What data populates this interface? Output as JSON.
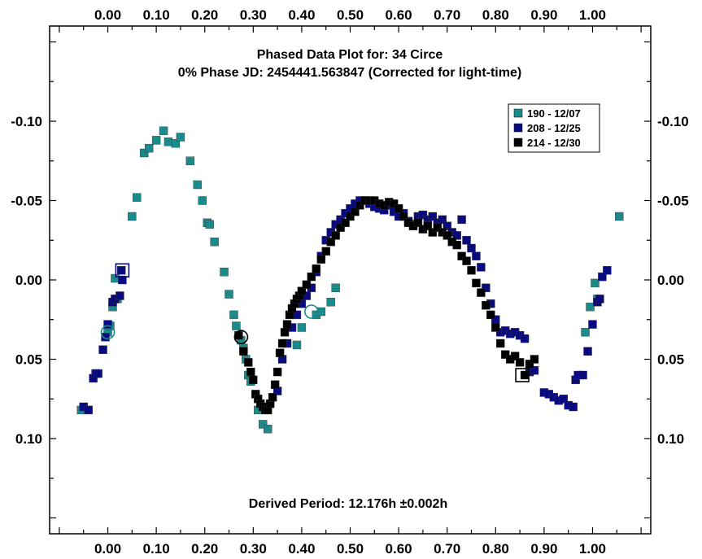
{
  "chart_data": {
    "type": "scatter",
    "title": "Phased Data Plot for: 34 Circe",
    "subtitle": "0% Phase JD:  2454441.563847    (Corrected for light-time)",
    "annotation": "Derived Period: 12.176h   ±0.002h",
    "xlim": [
      -0.12,
      1.12
    ],
    "ylim": [
      -0.16,
      0.16
    ],
    "y_inverted": true,
    "x_ticks": [
      "0.00",
      "0.10",
      "0.20",
      "0.30",
      "0.40",
      "0.50",
      "0.60",
      "0.70",
      "0.80",
      "0.90",
      "1.00"
    ],
    "y_ticks": [
      "-0.10",
      "-0.05",
      "0.00",
      "0.05",
      "0.10"
    ],
    "legend_position": "top-right",
    "series": [
      {
        "name": "190 - 12/07",
        "color": "#1a8a8a",
        "marker": "square",
        "points": [
          [
            -0.055,
            0.082
          ],
          [
            0.0,
            0.033
          ],
          [
            0.005,
            0.029
          ],
          [
            0.01,
            0.017
          ],
          [
            0.015,
            -0.001
          ],
          [
            0.02,
            0.012
          ],
          [
            0.05,
            -0.04
          ],
          [
            0.06,
            -0.052
          ],
          [
            0.075,
            -0.08
          ],
          [
            0.085,
            -0.083
          ],
          [
            0.1,
            -0.088
          ],
          [
            0.115,
            -0.094
          ],
          [
            0.125,
            -0.087
          ],
          [
            0.14,
            -0.086
          ],
          [
            0.15,
            -0.09
          ],
          [
            0.17,
            -0.075
          ],
          [
            0.185,
            -0.06
          ],
          [
            0.195,
            -0.05
          ],
          [
            0.205,
            -0.036
          ],
          [
            0.21,
            -0.035
          ],
          [
            0.22,
            -0.024
          ],
          [
            0.24,
            -0.005
          ],
          [
            0.25,
            0.009
          ],
          [
            0.26,
            0.022
          ],
          [
            0.265,
            0.029
          ],
          [
            0.275,
            0.038
          ],
          [
            0.28,
            0.043
          ],
          [
            0.285,
            0.05
          ],
          [
            0.29,
            0.06
          ],
          [
            0.295,
            0.064
          ],
          [
            0.31,
            0.082
          ],
          [
            0.32,
            0.091
          ],
          [
            0.33,
            0.094
          ],
          [
            0.39,
            0.041
          ],
          [
            0.4,
            0.03
          ],
          [
            0.43,
            0.022
          ],
          [
            0.44,
            0.02
          ],
          [
            0.46,
            0.014
          ],
          [
            0.47,
            0.005
          ],
          [
            0.985,
            0.033
          ],
          [
            0.995,
            0.017
          ],
          [
            1.005,
            0.002
          ],
          [
            1.01,
            0.012
          ],
          [
            1.055,
            -0.04
          ]
        ],
        "circled": [
          [
            0.0,
            0.033
          ],
          [
            0.42,
            0.02
          ]
        ]
      },
      {
        "name": "208 - 12/25",
        "color": "#0a0a80",
        "marker": "square",
        "points": [
          [
            -0.05,
            0.08
          ],
          [
            -0.04,
            0.082
          ],
          [
            -0.03,
            0.062
          ],
          [
            -0.025,
            0.059
          ],
          [
            -0.02,
            0.059
          ],
          [
            -0.01,
            0.044
          ],
          [
            -0.005,
            0.036
          ],
          [
            0.0,
            0.028
          ],
          [
            0.01,
            0.014
          ],
          [
            0.015,
            0.012
          ],
          [
            0.025,
            0.01
          ],
          [
            0.028,
            -0.006
          ],
          [
            0.03,
            0.0
          ],
          [
            0.32,
            0.08
          ],
          [
            0.35,
            0.07
          ],
          [
            0.36,
            0.05
          ],
          [
            0.37,
            0.04
          ],
          [
            0.38,
            0.03
          ],
          [
            0.39,
            0.022
          ],
          [
            0.4,
            0.015
          ],
          [
            0.41,
            0.01
          ],
          [
            0.42,
            0.005
          ],
          [
            0.43,
            -0.005
          ],
          [
            0.44,
            -0.015
          ],
          [
            0.45,
            -0.025
          ],
          [
            0.46,
            -0.03
          ],
          [
            0.47,
            -0.035
          ],
          [
            0.48,
            -0.038
          ],
          [
            0.49,
            -0.042
          ],
          [
            0.5,
            -0.045
          ],
          [
            0.51,
            -0.048
          ],
          [
            0.52,
            -0.05
          ],
          [
            0.53,
            -0.05
          ],
          [
            0.54,
            -0.048
          ],
          [
            0.55,
            -0.046
          ],
          [
            0.56,
            -0.045
          ],
          [
            0.57,
            -0.044
          ],
          [
            0.58,
            -0.047
          ],
          [
            0.59,
            -0.043
          ],
          [
            0.6,
            -0.04
          ],
          [
            0.61,
            -0.042
          ],
          [
            0.62,
            -0.037
          ],
          [
            0.63,
            -0.035
          ],
          [
            0.64,
            -0.04
          ],
          [
            0.65,
            -0.041
          ],
          [
            0.66,
            -0.038
          ],
          [
            0.67,
            -0.04
          ],
          [
            0.68,
            -0.036
          ],
          [
            0.69,
            -0.038
          ],
          [
            0.7,
            -0.034
          ],
          [
            0.71,
            -0.03
          ],
          [
            0.72,
            -0.028
          ],
          [
            0.73,
            -0.038
          ],
          [
            0.74,
            -0.025
          ],
          [
            0.75,
            -0.02
          ],
          [
            0.76,
            -0.015
          ],
          [
            0.77,
            -0.008
          ],
          [
            0.78,
            0.005
          ],
          [
            0.79,
            0.015
          ],
          [
            0.8,
            0.025
          ],
          [
            0.81,
            0.033
          ],
          [
            0.82,
            0.032
          ],
          [
            0.83,
            0.034
          ],
          [
            0.84,
            0.033
          ],
          [
            0.85,
            0.035
          ],
          [
            0.86,
            0.037
          ],
          [
            0.87,
            0.058
          ],
          [
            0.88,
            0.057
          ],
          [
            0.9,
            0.071
          ],
          [
            0.91,
            0.072
          ],
          [
            0.92,
            0.074
          ],
          [
            0.93,
            0.076
          ],
          [
            0.94,
            0.075
          ],
          [
            0.95,
            0.079
          ],
          [
            0.96,
            0.08
          ],
          [
            0.965,
            0.063
          ],
          [
            0.97,
            0.06
          ],
          [
            0.98,
            0.06
          ],
          [
            0.99,
            0.045
          ],
          [
            1.0,
            0.028
          ],
          [
            1.01,
            0.014
          ],
          [
            1.015,
            0.012
          ],
          [
            1.02,
            -0.002
          ],
          [
            1.03,
            -0.006
          ]
        ],
        "boxed": [
          [
            0.03,
            -0.006
          ]
        ]
      },
      {
        "name": "214 - 12/30",
        "color": "#000000",
        "marker": "square",
        "points": [
          [
            0.27,
            0.035
          ],
          [
            0.28,
            0.045
          ],
          [
            0.29,
            0.052
          ],
          [
            0.295,
            0.058
          ],
          [
            0.3,
            0.063
          ],
          [
            0.305,
            0.072
          ],
          [
            0.31,
            0.075
          ],
          [
            0.315,
            0.078
          ],
          [
            0.32,
            0.08
          ],
          [
            0.325,
            0.082
          ],
          [
            0.33,
            0.082
          ],
          [
            0.335,
            0.078
          ],
          [
            0.34,
            0.074
          ],
          [
            0.345,
            0.066
          ],
          [
            0.35,
            0.058
          ],
          [
            0.355,
            0.046
          ],
          [
            0.36,
            0.04
          ],
          [
            0.365,
            0.033
          ],
          [
            0.37,
            0.028
          ],
          [
            0.375,
            0.022
          ],
          [
            0.38,
            0.018
          ],
          [
            0.385,
            0.015
          ],
          [
            0.39,
            0.012
          ],
          [
            0.395,
            0.01
          ],
          [
            0.4,
            0.007
          ],
          [
            0.41,
            0.003
          ],
          [
            0.42,
            -0.002
          ],
          [
            0.43,
            -0.007
          ],
          [
            0.44,
            -0.013
          ],
          [
            0.45,
            -0.018
          ],
          [
            0.46,
            -0.024
          ],
          [
            0.47,
            -0.028
          ],
          [
            0.48,
            -0.033
          ],
          [
            0.49,
            -0.036
          ],
          [
            0.5,
            -0.04
          ],
          [
            0.51,
            -0.043
          ],
          [
            0.52,
            -0.047
          ],
          [
            0.53,
            -0.05
          ],
          [
            0.54,
            -0.05
          ],
          [
            0.55,
            -0.05
          ],
          [
            0.56,
            -0.048
          ],
          [
            0.57,
            -0.047
          ],
          [
            0.58,
            -0.049
          ],
          [
            0.59,
            -0.048
          ],
          [
            0.6,
            -0.045
          ],
          [
            0.61,
            -0.04
          ],
          [
            0.62,
            -0.036
          ],
          [
            0.63,
            -0.034
          ],
          [
            0.64,
            -0.036
          ],
          [
            0.65,
            -0.032
          ],
          [
            0.66,
            -0.034
          ],
          [
            0.67,
            -0.03
          ],
          [
            0.68,
            -0.033
          ],
          [
            0.69,
            -0.03
          ],
          [
            0.7,
            -0.028
          ],
          [
            0.71,
            -0.024
          ],
          [
            0.72,
            -0.022
          ],
          [
            0.73,
            -0.015
          ],
          [
            0.74,
            -0.012
          ],
          [
            0.75,
            -0.006
          ],
          [
            0.76,
            0.002
          ],
          [
            0.77,
            0.008
          ],
          [
            0.78,
            0.016
          ],
          [
            0.79,
            0.022
          ],
          [
            0.8,
            0.03
          ],
          [
            0.81,
            0.04
          ],
          [
            0.82,
            0.047
          ],
          [
            0.83,
            0.05
          ],
          [
            0.84,
            0.048
          ],
          [
            0.85,
            0.052
          ],
          [
            0.86,
            0.06
          ],
          [
            0.87,
            0.053
          ],
          [
            0.88,
            0.05
          ]
        ],
        "circled": [
          [
            0.275,
            0.036
          ]
        ],
        "boxed": [
          [
            0.855,
            0.06
          ]
        ]
      }
    ]
  }
}
